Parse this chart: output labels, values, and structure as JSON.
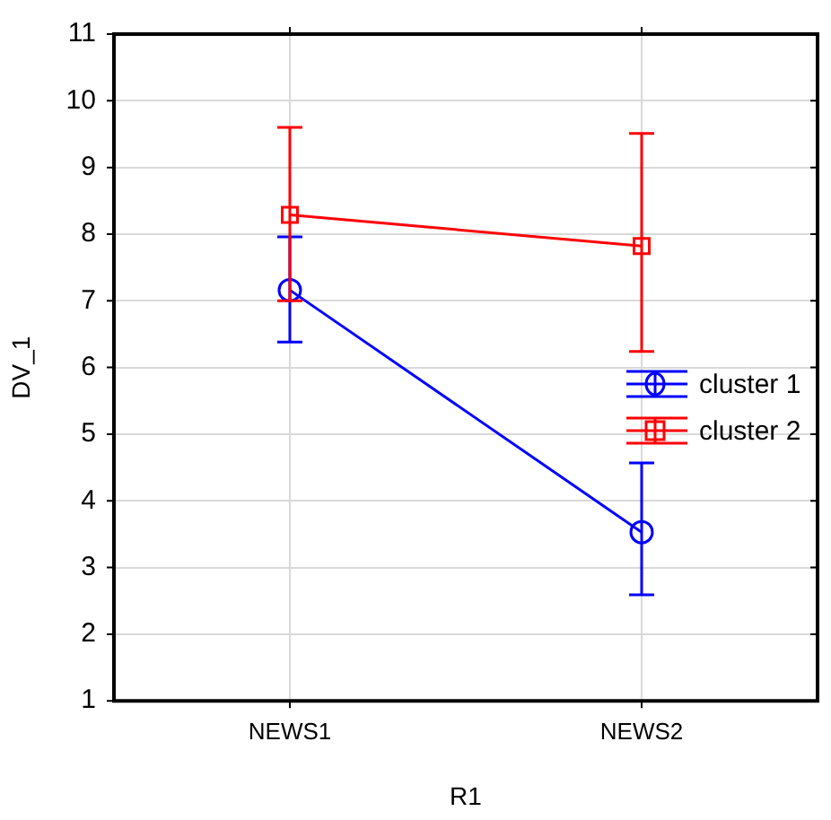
{
  "chart_data": {
    "type": "line",
    "xlabel": "R1",
    "ylabel": "DV_1",
    "categories": [
      "NEWS1",
      "NEWS2"
    ],
    "ylim": [
      1,
      11
    ],
    "yticks": [
      1,
      2,
      3,
      4,
      5,
      6,
      7,
      8,
      9,
      10,
      11
    ],
    "grid": true,
    "legend": "right",
    "series": [
      {
        "name": "cluster 1",
        "color": "#0000ff",
        "marker": "circle",
        "values": [
          7.16,
          3.53
        ],
        "errors": [
          [
            6.38,
            7.96
          ],
          [
            2.59,
            4.57
          ]
        ]
      },
      {
        "name": "cluster 2",
        "color": "#ff0000",
        "marker": "square",
        "values": [
          8.29,
          7.82
        ],
        "errors": [
          [
            7.0,
            9.6
          ],
          [
            6.24,
            9.51
          ]
        ]
      }
    ]
  }
}
